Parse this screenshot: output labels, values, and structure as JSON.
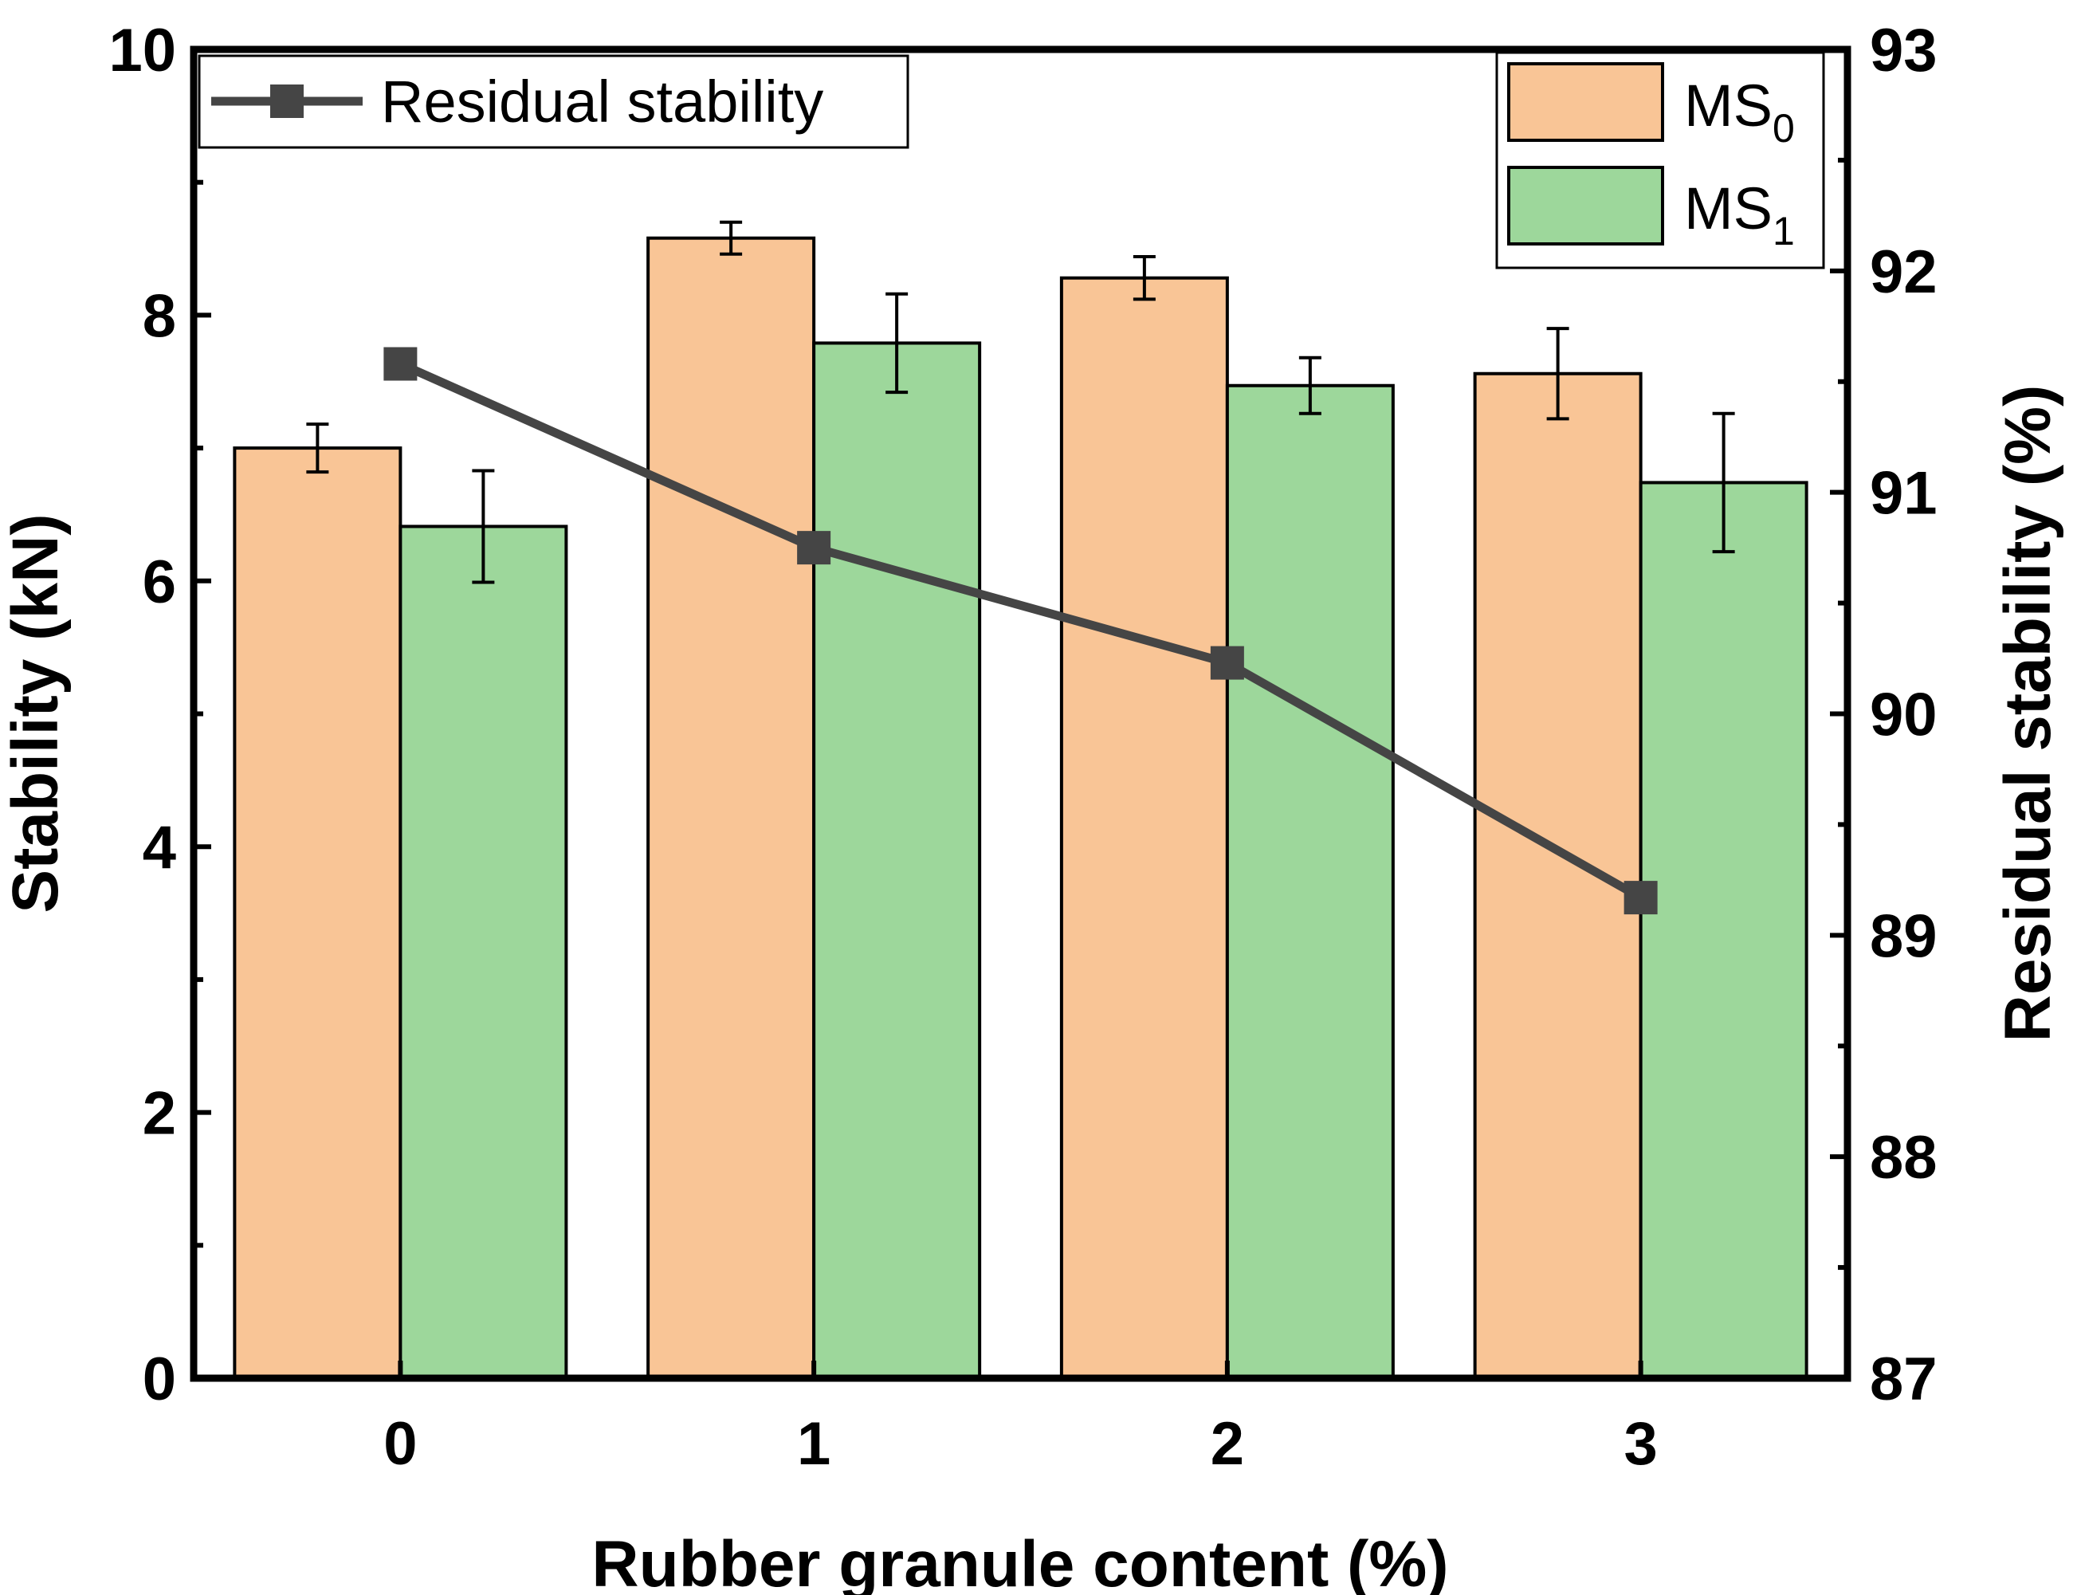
{
  "chart_data": {
    "type": "bar",
    "categories": [
      "0",
      "1",
      "2",
      "3"
    ],
    "xlabel": "Rubber granule content (%)",
    "ylabel": "Stability (kN)",
    "y2label": "Residual stability (%)",
    "ylim": [
      0,
      10
    ],
    "y2lim": [
      87,
      93
    ],
    "yticks": [
      "0",
      "2",
      "4",
      "6",
      "8",
      "10"
    ],
    "y2ticks": [
      "87",
      "88",
      "89",
      "90",
      "91",
      "92",
      "93"
    ],
    "series": [
      {
        "name": "MS",
        "subscript": "0",
        "type": "bar",
        "color": "#F9C596",
        "values": [
          7.0,
          8.58,
          8.28,
          7.56
        ],
        "errors": [
          0.18,
          0.12,
          0.16,
          0.34
        ]
      },
      {
        "name": "MS",
        "subscript": "1",
        "type": "bar",
        "color": "#9DD79B",
        "values": [
          6.41,
          7.79,
          7.47,
          6.74
        ],
        "errors": [
          0.42,
          0.37,
          0.21,
          0.52
        ]
      },
      {
        "name": "Residual stability",
        "type": "line",
        "axis": "right",
        "color": "#454545",
        "values": [
          91.58,
          90.75,
          90.23,
          89.17
        ]
      }
    ],
    "legend": [
      "top-left",
      "top-right"
    ]
  }
}
